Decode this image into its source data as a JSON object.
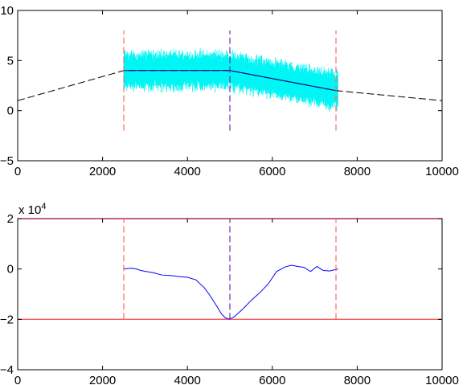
{
  "chart_data": [
    {
      "type": "line",
      "xlim": [
        0,
        10000
      ],
      "ylim": [
        -5,
        10
      ],
      "x_ticks": [
        0,
        2000,
        4000,
        6000,
        8000,
        10000
      ],
      "y_ticks": [
        -5,
        0,
        5,
        10
      ],
      "x_tick_labels": [
        "0",
        "2000",
        "4000",
        "6000",
        "8000",
        "10000"
      ],
      "y_tick_labels": [
        "−5",
        "0",
        "5",
        "10"
      ],
      "grid": false,
      "noise_band": {
        "color": "#00f5f5",
        "x_range": [
          2500,
          7550
        ],
        "mean_x": [
          2500,
          5000,
          7550
        ],
        "mean_y": [
          4,
          4,
          2
        ],
        "half_width": 2.3
      },
      "series": [
        {
          "x": [
            0,
            2500,
            5000,
            7500,
            10000
          ],
          "y": [
            1,
            4,
            4,
            2,
            1
          ],
          "color": "#000000",
          "style": "dashed"
        },
        {
          "x": [
            2500,
            5000,
            7500
          ],
          "y": [
            4,
            4,
            2
          ],
          "color": "#00008b",
          "style": "solid"
        }
      ],
      "vlines": [
        {
          "x": 2500,
          "y": [
            -2,
            8
          ],
          "color": "#ff6666",
          "style": "dashed"
        },
        {
          "x": 5000,
          "y": [
            -2,
            8
          ],
          "color": "#7a2fa8",
          "style": "dashed"
        },
        {
          "x": 7500,
          "y": [
            -2,
            8
          ],
          "color": "#ff6666",
          "style": "dashed"
        }
      ]
    },
    {
      "type": "line",
      "xlim": [
        0,
        10000
      ],
      "ylim": [
        -40000,
        20000
      ],
      "y_multiplier": "x 10",
      "y_multiplier_exp": "4",
      "x_ticks": [
        0,
        2000,
        4000,
        6000,
        8000,
        10000
      ],
      "y_ticks": [
        -40000,
        -20000,
        0,
        20000
      ],
      "x_tick_labels": [
        "0",
        "2000",
        "4000",
        "6000",
        "8000",
        "10000"
      ],
      "y_tick_labels": [
        "−4",
        "−2",
        "0",
        "2"
      ],
      "grid": false,
      "hlines": [
        {
          "y": 20000,
          "color": "#a0002c"
        },
        {
          "y": -20000,
          "color": "#ff5a5a"
        }
      ],
      "vlines": [
        {
          "x": 2500,
          "y": [
            -20000,
            20000
          ],
          "color": "#ff6666",
          "style": "dashed"
        },
        {
          "x": 5000,
          "y": [
            -20000,
            20000
          ],
          "color": "#7a2fa8",
          "style": "dashed"
        },
        {
          "x": 7500,
          "y": [
            -20000,
            20000
          ],
          "color": "#ff6666",
          "style": "dashed"
        }
      ],
      "series": [
        {
          "color": "#0000ff",
          "style": "solid",
          "x": [
            2500,
            2600,
            2700,
            2800,
            2900,
            3000,
            3200,
            3400,
            3600,
            3800,
            4000,
            4200,
            4400,
            4550,
            4700,
            4800,
            4900,
            5000,
            5100,
            5300,
            5500,
            5700,
            5900,
            6100,
            6300,
            6450,
            6600,
            6750,
            6900,
            7050,
            7200,
            7350,
            7550
          ],
          "y": [
            0,
            200,
            300,
            0,
            -600,
            -900,
            -1500,
            -2400,
            -2600,
            -3000,
            -3300,
            -4300,
            -7500,
            -11000,
            -15000,
            -17800,
            -19500,
            -19900,
            -19000,
            -16000,
            -12500,
            -9500,
            -6000,
            -1000,
            800,
            1500,
            1000,
            600,
            -1000,
            1000,
            -600,
            -800,
            0
          ]
        }
      ]
    }
  ]
}
